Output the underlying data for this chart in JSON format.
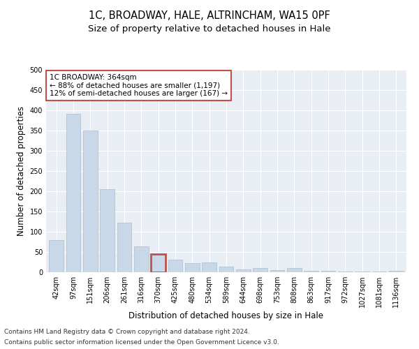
{
  "title": "1C, BROADWAY, HALE, ALTRINCHAM, WA15 0PF",
  "subtitle": "Size of property relative to detached houses in Hale",
  "xlabel": "Distribution of detached houses by size in Hale",
  "ylabel": "Number of detached properties",
  "categories": [
    "42sqm",
    "97sqm",
    "151sqm",
    "206sqm",
    "261sqm",
    "316sqm",
    "370sqm",
    "425sqm",
    "480sqm",
    "534sqm",
    "589sqm",
    "644sqm",
    "698sqm",
    "753sqm",
    "808sqm",
    "863sqm",
    "917sqm",
    "972sqm",
    "1027sqm",
    "1081sqm",
    "1136sqm"
  ],
  "values": [
    80,
    392,
    350,
    205,
    122,
    63,
    45,
    31,
    22,
    24,
    14,
    7,
    10,
    6,
    10,
    3,
    3,
    2,
    2,
    2,
    3
  ],
  "bar_color": "#c8d8e8",
  "bar_edge_color": "#aabccc",
  "highlight_bar_index": 6,
  "highlight_bar_edge_color": "#c0504d",
  "annotation_box_text": "1C BROADWAY: 364sqm\n← 88% of detached houses are smaller (1,197)\n12% of semi-detached houses are larger (167) →",
  "annotation_box_color": "#ffffff",
  "annotation_box_edge_color": "#c0504d",
  "ylim": [
    0,
    500
  ],
  "yticks": [
    0,
    50,
    100,
    150,
    200,
    250,
    300,
    350,
    400,
    450,
    500
  ],
  "background_color": "#e8eef4",
  "grid_color": "#ffffff",
  "figure_bg": "#ffffff",
  "footer_line1": "Contains HM Land Registry data © Crown copyright and database right 2024.",
  "footer_line2": "Contains public sector information licensed under the Open Government Licence v3.0.",
  "title_fontsize": 10.5,
  "subtitle_fontsize": 9.5,
  "xlabel_fontsize": 8.5,
  "ylabel_fontsize": 8.5,
  "tick_fontsize": 7,
  "annotation_fontsize": 7.5,
  "footer_fontsize": 6.5
}
